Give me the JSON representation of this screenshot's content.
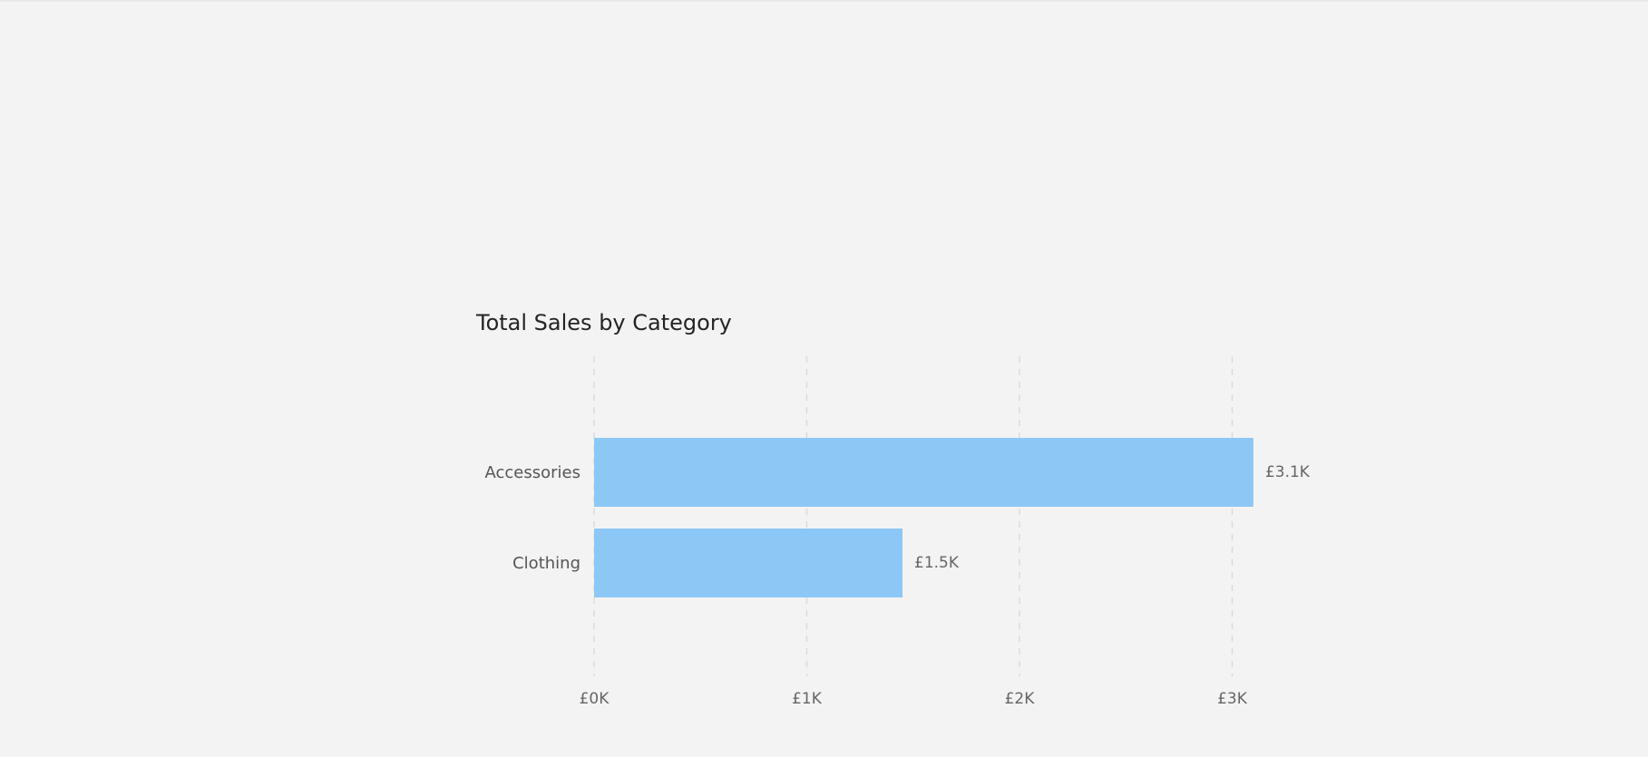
{
  "chart_data": {
    "type": "bar",
    "orientation": "horizontal",
    "title": "Total Sales by Category",
    "categories": [
      "Accessories",
      "Clothing"
    ],
    "values": [
      3100,
      1450
    ],
    "data_labels": [
      "£3.1K",
      "£1.5K"
    ],
    "xlim": [
      0,
      3000
    ],
    "xticks": [
      0,
      1000,
      2000,
      3000
    ],
    "xtick_labels": [
      "£0K",
      "£1K",
      "£2K",
      "£3K"
    ],
    "grid": true,
    "bar_color": "#8dc7f6",
    "xlabel": "",
    "ylabel": ""
  }
}
